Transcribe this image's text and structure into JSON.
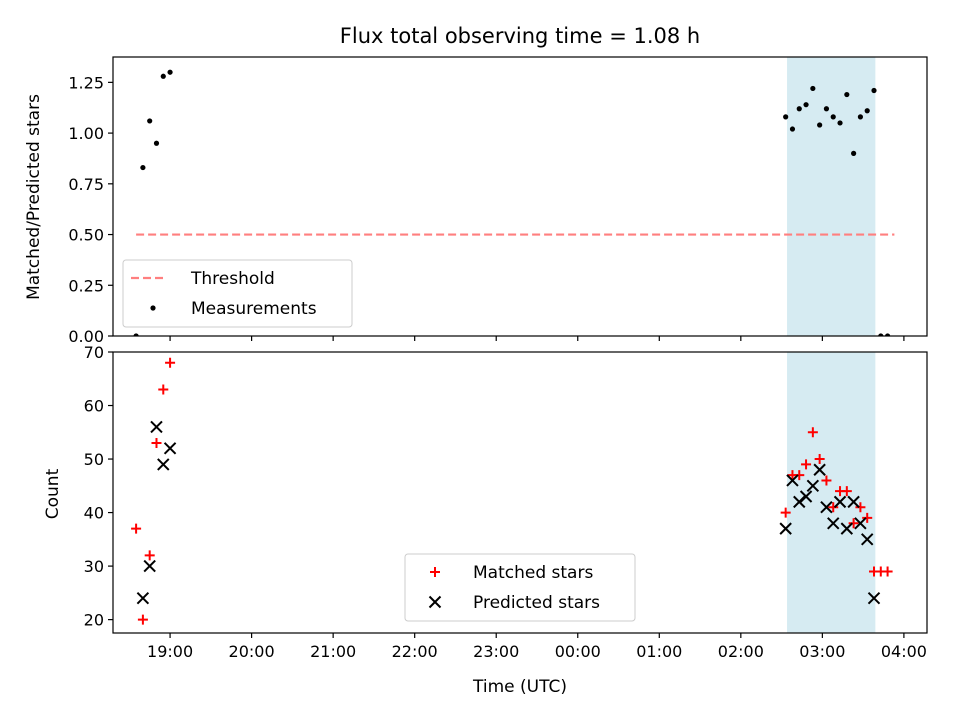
{
  "chart_data": [
    {
      "type": "scatter",
      "title": "Flux total observing time = 1.08 h",
      "ylabel": "Matched/Predicted stars",
      "xlabel": "",
      "xlim": [
        "18:18",
        "04:17"
      ],
      "ylim": [
        0,
        1.375
      ],
      "x_ticks": [
        "19:00",
        "20:00",
        "21:00",
        "22:00",
        "23:00",
        "00:00",
        "01:00",
        "02:00",
        "03:00",
        "04:00"
      ],
      "y_ticks": [
        "0.00",
        "0.25",
        "0.50",
        "0.75",
        "1.00",
        "1.25"
      ],
      "grid": false,
      "legend_position": "lower-left",
      "shaded_region": {
        "from": "02:34",
        "to": "03:39",
        "color": "#add8e6"
      },
      "threshold": {
        "name": "Threshold",
        "value": 0.5,
        "from": "18:35",
        "to": "03:53",
        "color": "#ff7f7f"
      },
      "series": [
        {
          "name": "Measurements",
          "color": "#000000",
          "points": [
            {
              "x": "18:35",
              "y": 0.0
            },
            {
              "x": "18:40",
              "y": 0.83
            },
            {
              "x": "18:45",
              "y": 1.06
            },
            {
              "x": "18:50",
              "y": 0.95
            },
            {
              "x": "18:55",
              "y": 1.28
            },
            {
              "x": "19:00",
              "y": 1.3
            },
            {
              "x": "02:33",
              "y": 1.08
            },
            {
              "x": "02:38",
              "y": 1.02
            },
            {
              "x": "02:43",
              "y": 1.12
            },
            {
              "x": "02:48",
              "y": 1.14
            },
            {
              "x": "02:53",
              "y": 1.22
            },
            {
              "x": "02:58",
              "y": 1.04
            },
            {
              "x": "03:03",
              "y": 1.12
            },
            {
              "x": "03:08",
              "y": 1.08
            },
            {
              "x": "03:13",
              "y": 1.05
            },
            {
              "x": "03:18",
              "y": 1.19
            },
            {
              "x": "03:23",
              "y": 0.9
            },
            {
              "x": "03:28",
              "y": 1.08
            },
            {
              "x": "03:33",
              "y": 1.11
            },
            {
              "x": "03:38",
              "y": 1.21
            },
            {
              "x": "03:43",
              "y": 0.0
            },
            {
              "x": "03:48",
              "y": 0.0
            }
          ]
        }
      ],
      "legend": [
        "Threshold",
        "Measurements"
      ]
    },
    {
      "type": "scatter",
      "title": "",
      "ylabel": "Count",
      "xlabel": "Time (UTC)",
      "xlim": [
        "18:18",
        "04:17"
      ],
      "ylim": [
        17.5,
        70
      ],
      "x_ticks": [
        "19:00",
        "20:00",
        "21:00",
        "22:00",
        "23:00",
        "00:00",
        "01:00",
        "02:00",
        "03:00",
        "04:00"
      ],
      "y_ticks": [
        "20",
        "30",
        "40",
        "50",
        "60",
        "70"
      ],
      "grid": false,
      "legend_position": "lower-center",
      "shaded_region": {
        "from": "02:34",
        "to": "03:39",
        "color": "#add8e6"
      },
      "series": [
        {
          "name": "Matched stars",
          "color": "#ff0000",
          "marker": "+",
          "points": [
            {
              "x": "18:35",
              "y": 37
            },
            {
              "x": "18:40",
              "y": 20
            },
            {
              "x": "18:45",
              "y": 32
            },
            {
              "x": "18:50",
              "y": 53
            },
            {
              "x": "18:55",
              "y": 63
            },
            {
              "x": "19:00",
              "y": 68
            },
            {
              "x": "02:33",
              "y": 40
            },
            {
              "x": "02:38",
              "y": 47
            },
            {
              "x": "02:43",
              "y": 47
            },
            {
              "x": "02:48",
              "y": 49
            },
            {
              "x": "02:53",
              "y": 55
            },
            {
              "x": "02:58",
              "y": 50
            },
            {
              "x": "03:03",
              "y": 46
            },
            {
              "x": "03:08",
              "y": 41
            },
            {
              "x": "03:13",
              "y": 44
            },
            {
              "x": "03:18",
              "y": 44
            },
            {
              "x": "03:23",
              "y": 38
            },
            {
              "x": "03:28",
              "y": 41
            },
            {
              "x": "03:33",
              "y": 39
            },
            {
              "x": "03:38",
              "y": 29
            },
            {
              "x": "03:43",
              "y": 29
            },
            {
              "x": "03:48",
              "y": 29
            }
          ]
        },
        {
          "name": "Predicted stars",
          "color": "#000000",
          "marker": "x",
          "points": [
            {
              "x": "18:40",
              "y": 24
            },
            {
              "x": "18:45",
              "y": 30
            },
            {
              "x": "18:50",
              "y": 56
            },
            {
              "x": "18:55",
              "y": 49
            },
            {
              "x": "19:00",
              "y": 52
            },
            {
              "x": "02:33",
              "y": 37
            },
            {
              "x": "02:38",
              "y": 46
            },
            {
              "x": "02:43",
              "y": 42
            },
            {
              "x": "02:48",
              "y": 43
            },
            {
              "x": "02:53",
              "y": 45
            },
            {
              "x": "02:58",
              "y": 48
            },
            {
              "x": "03:03",
              "y": 41
            },
            {
              "x": "03:08",
              "y": 38
            },
            {
              "x": "03:13",
              "y": 42
            },
            {
              "x": "03:18",
              "y": 37
            },
            {
              "x": "03:23",
              "y": 42
            },
            {
              "x": "03:28",
              "y": 38
            },
            {
              "x": "03:33",
              "y": 35
            },
            {
              "x": "03:38",
              "y": 24
            }
          ]
        }
      ],
      "legend": [
        "Matched stars",
        "Predicted stars"
      ]
    }
  ]
}
